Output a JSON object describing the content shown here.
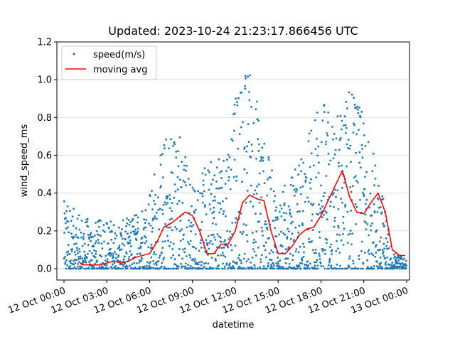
{
  "chart_data": {
    "type": "scatter",
    "title": "Updated: 2023-10-24 21:23:17.866456 UTC",
    "xlabel": "datetime",
    "ylabel": "wind_speed_ms",
    "x_range_hours": [
      -0.5,
      24.2
    ],
    "xlim_dates": [
      "2023-10-11 23:30",
      "2023-10-13 00:12"
    ],
    "ylim": [
      -0.06,
      1.2
    ],
    "x_ticks": [
      "12 Oct 00:00",
      "12 Oct 03:00",
      "12 Oct 06:00",
      "12 Oct 09:00",
      "12 Oct 12:00",
      "12 Oct 15:00",
      "12 Oct 18:00",
      "12 Oct 21:00",
      "13 Oct 00:00"
    ],
    "y_ticks": [
      "0.0",
      "0.2",
      "0.4",
      "0.6",
      "0.8",
      "1.0",
      "1.2"
    ],
    "y_tick_values": [
      0.0,
      0.2,
      0.4,
      0.6,
      0.8,
      1.0,
      1.2
    ],
    "grid": "horizontal",
    "legend": "top-left",
    "series": [
      {
        "name": "speed(m/s)",
        "kind": "scatter",
        "color": "#1f77b4",
        "approx_profile_by_hour": {
          "hours": [
            0,
            1,
            2,
            3,
            4,
            5,
            6,
            7,
            8,
            9,
            10,
            11,
            12,
            13,
            14,
            15,
            16,
            17,
            18,
            19,
            20,
            21,
            22,
            23,
            24
          ],
          "typical_max": [
            0.36,
            0.3,
            0.25,
            0.27,
            0.25,
            0.3,
            0.45,
            0.7,
            0.8,
            0.45,
            0.55,
            0.6,
            0.9,
            1.14,
            0.7,
            0.4,
            0.5,
            0.7,
            0.92,
            0.8,
            1.01,
            0.8,
            0.55,
            0.1,
            0.05
          ]
        }
      },
      {
        "name": "moving avg",
        "kind": "line",
        "color": "#ff0000",
        "x": [
          1.0,
          1.3,
          1.6,
          2.0,
          2.5,
          3.0,
          3.5,
          4.0,
          4.5,
          5.0,
          5.5,
          6.0,
          6.5,
          7.0,
          7.5,
          8.0,
          8.5,
          9.0,
          9.5,
          10.0,
          10.5,
          11.0,
          11.5,
          12.0,
          12.5,
          13.0,
          13.5,
          14.0,
          14.5,
          15.0,
          15.5,
          16.0,
          16.5,
          17.0,
          17.5,
          18.0,
          18.5,
          19.0,
          19.5,
          20.0,
          20.5,
          21.0,
          21.5,
          22.0,
          22.5,
          23.0,
          23.5,
          23.9
        ],
        "y": [
          0.04,
          0.02,
          0.02,
          0.02,
          0.02,
          0.03,
          0.04,
          0.03,
          0.04,
          0.06,
          0.07,
          0.08,
          0.14,
          0.22,
          0.24,
          0.27,
          0.3,
          0.28,
          0.2,
          0.08,
          0.08,
          0.13,
          0.13,
          0.2,
          0.35,
          0.39,
          0.37,
          0.36,
          0.2,
          0.08,
          0.08,
          0.12,
          0.18,
          0.21,
          0.22,
          0.28,
          0.36,
          0.44,
          0.52,
          0.38,
          0.3,
          0.29,
          0.35,
          0.4,
          0.3,
          0.1,
          0.07,
          0.07
        ]
      }
    ]
  }
}
